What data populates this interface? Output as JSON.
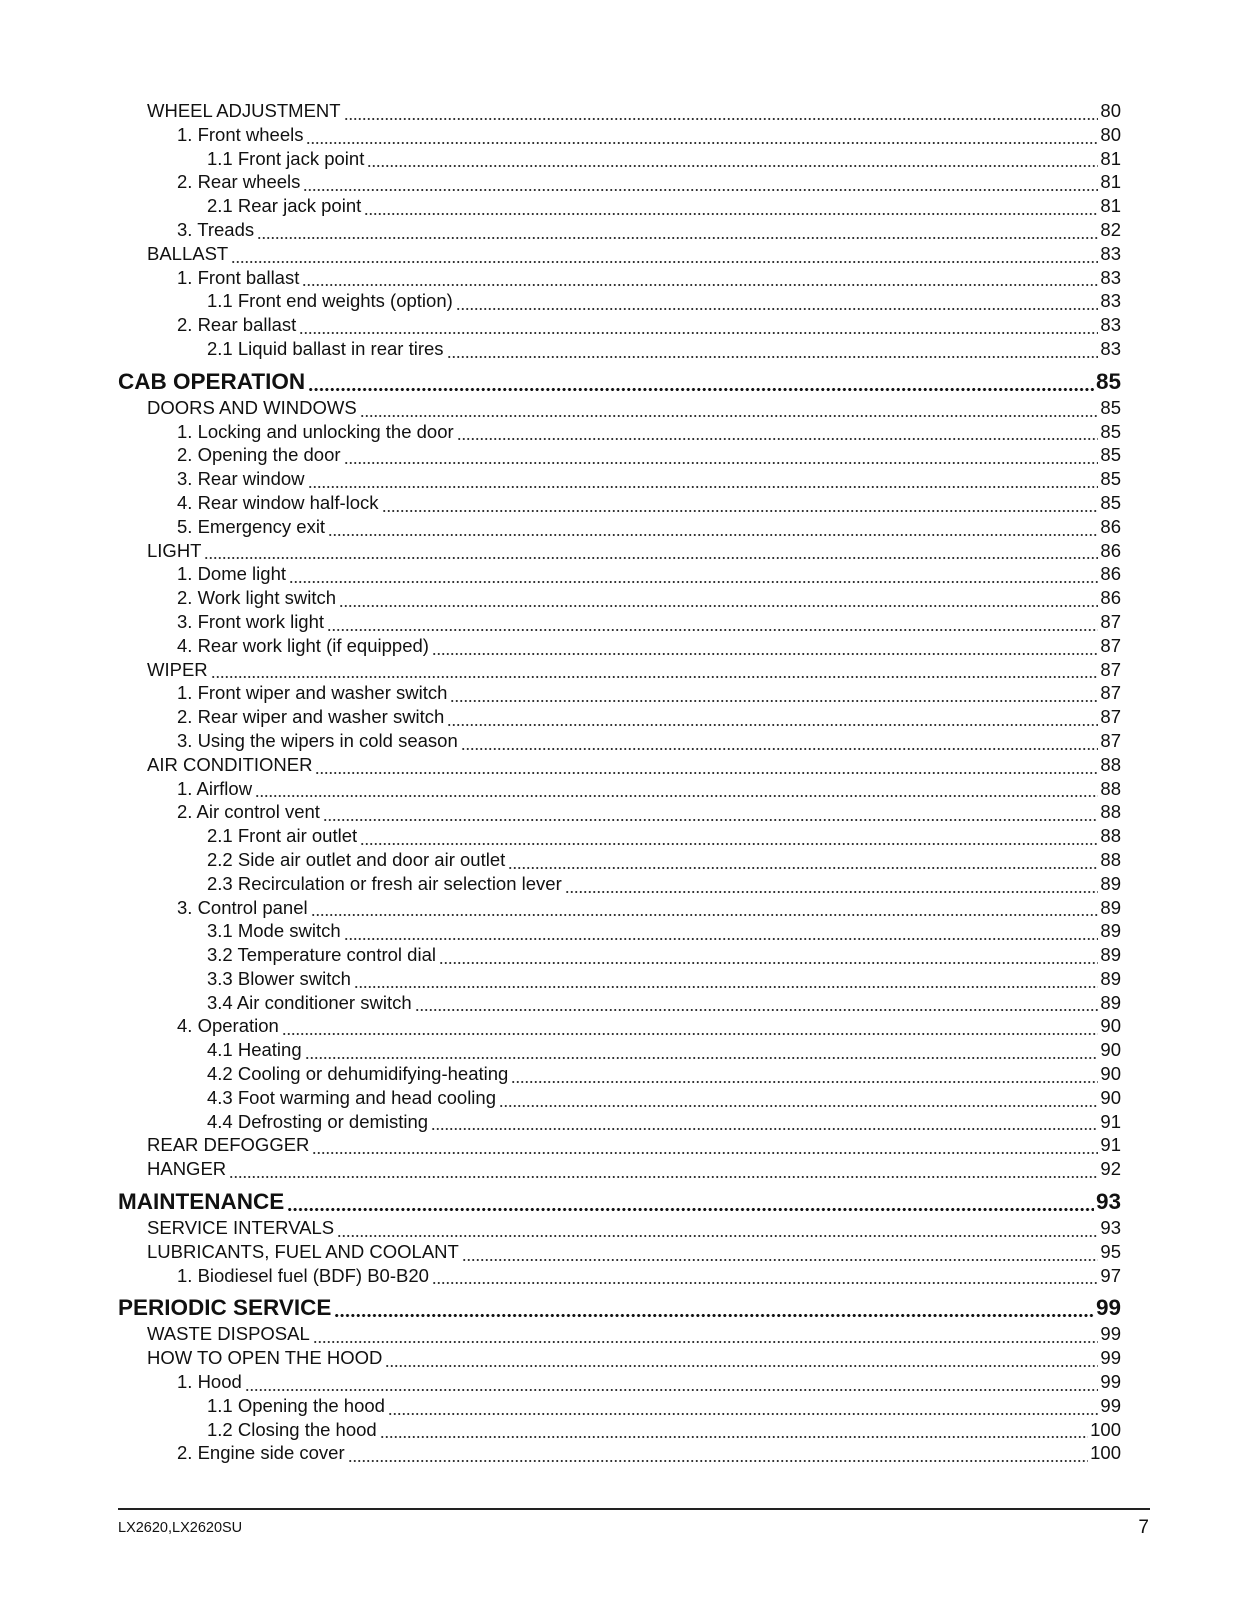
{
  "toc": [
    {
      "level": 1,
      "title": "WHEEL ADJUSTMENT",
      "page": "80"
    },
    {
      "level": 2,
      "title": "1. Front wheels",
      "page": "80"
    },
    {
      "level": 3,
      "title": "1.1 Front jack point",
      "page": "81"
    },
    {
      "level": 2,
      "title": "2. Rear wheels",
      "page": "81"
    },
    {
      "level": 3,
      "title": "2.1 Rear jack point",
      "page": "81"
    },
    {
      "level": 2,
      "title": "3. Treads",
      "page": "82"
    },
    {
      "level": 1,
      "title": "BALLAST",
      "page": "83"
    },
    {
      "level": 2,
      "title": "1. Front ballast",
      "page": "83"
    },
    {
      "level": 3,
      "title": "1.1 Front end weights (option)",
      "page": "83"
    },
    {
      "level": 2,
      "title": "2. Rear ballast",
      "page": "83"
    },
    {
      "level": 3,
      "title": "2.1 Liquid ballast in rear tires",
      "page": "83"
    },
    {
      "level": 0,
      "title": "CAB OPERATION",
      "page": "85"
    },
    {
      "level": 1,
      "title": "DOORS AND WINDOWS",
      "page": "85"
    },
    {
      "level": 2,
      "title": "1. Locking and unlocking the door",
      "page": "85"
    },
    {
      "level": 2,
      "title": "2. Opening the door",
      "page": "85"
    },
    {
      "level": 2,
      "title": "3. Rear window",
      "page": "85"
    },
    {
      "level": 2,
      "title": "4. Rear window half-lock",
      "page": "85"
    },
    {
      "level": 2,
      "title": "5. Emergency exit",
      "page": "86"
    },
    {
      "level": 1,
      "title": "LIGHT",
      "page": "86"
    },
    {
      "level": 2,
      "title": "1. Dome light",
      "page": "86"
    },
    {
      "level": 2,
      "title": "2. Work light switch",
      "page": "86"
    },
    {
      "level": 2,
      "title": "3. Front work light",
      "page": "87"
    },
    {
      "level": 2,
      "title": "4. Rear work light (if equipped)",
      "page": "87"
    },
    {
      "level": 1,
      "title": "WIPER",
      "page": "87"
    },
    {
      "level": 2,
      "title": "1. Front wiper and washer switch",
      "page": "87"
    },
    {
      "level": 2,
      "title": "2. Rear wiper and washer switch",
      "page": "87"
    },
    {
      "level": 2,
      "title": "3. Using the wipers in cold season",
      "page": "87"
    },
    {
      "level": 1,
      "title": "AIR CONDITIONER",
      "page": "88"
    },
    {
      "level": 2,
      "title": "1. Airflow",
      "page": "88"
    },
    {
      "level": 2,
      "title": "2. Air control vent",
      "page": "88"
    },
    {
      "level": 3,
      "title": "2.1 Front air outlet",
      "page": "88"
    },
    {
      "level": 3,
      "title": "2.2 Side air outlet and door air outlet",
      "page": "88"
    },
    {
      "level": 3,
      "title": "2.3 Recirculation or fresh air selection lever",
      "page": "89"
    },
    {
      "level": 2,
      "title": "3. Control panel",
      "page": "89"
    },
    {
      "level": 3,
      "title": "3.1 Mode switch",
      "page": "89"
    },
    {
      "level": 3,
      "title": "3.2 Temperature control dial",
      "page": "89"
    },
    {
      "level": 3,
      "title": "3.3 Blower switch",
      "page": "89"
    },
    {
      "level": 3,
      "title": "3.4 Air conditioner switch",
      "page": "89"
    },
    {
      "level": 2,
      "title": "4. Operation",
      "page": "90"
    },
    {
      "level": 3,
      "title": "4.1 Heating",
      "page": "90"
    },
    {
      "level": 3,
      "title": "4.2 Cooling or dehumidifying-heating",
      "page": "90"
    },
    {
      "level": 3,
      "title": "4.3 Foot warming and head cooling",
      "page": "90"
    },
    {
      "level": 3,
      "title": "4.4 Defrosting or demisting",
      "page": "91"
    },
    {
      "level": 1,
      "title": "REAR DEFOGGER",
      "page": "91"
    },
    {
      "level": 1,
      "title": "HANGER",
      "page": "92"
    },
    {
      "level": 0,
      "title": "MAINTENANCE",
      "page": "93"
    },
    {
      "level": 1,
      "title": "SERVICE INTERVALS",
      "page": "93"
    },
    {
      "level": 1,
      "title": "LUBRICANTS, FUEL AND COOLANT",
      "page": "95"
    },
    {
      "level": 2,
      "title": "1. Biodiesel fuel (BDF) B0-B20",
      "page": "97"
    },
    {
      "level": 0,
      "title": "PERIODIC SERVICE",
      "page": "99"
    },
    {
      "level": 1,
      "title": "WASTE DISPOSAL",
      "page": "99"
    },
    {
      "level": 1,
      "title": "HOW TO OPEN THE HOOD",
      "page": "99"
    },
    {
      "level": 2,
      "title": "1. Hood",
      "page": "99"
    },
    {
      "level": 3,
      "title": "1.1 Opening the hood",
      "page": "99"
    },
    {
      "level": 3,
      "title": "1.2 Closing the hood",
      "page": "100"
    },
    {
      "level": 2,
      "title": "2. Engine side cover",
      "page": "100"
    }
  ],
  "footer": {
    "model": "LX2620,LX2620SU",
    "page_number": "7"
  }
}
